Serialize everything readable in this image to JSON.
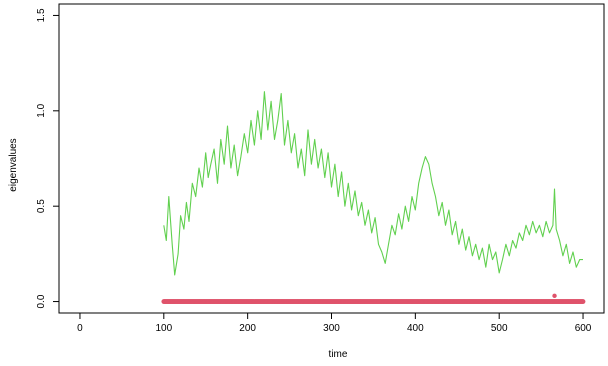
{
  "chart_data": {
    "type": "line",
    "xlabel": "time",
    "ylabel": "eigenvalues",
    "xlim": [
      -25,
      625
    ],
    "ylim": [
      -0.06,
      1.56
    ],
    "x_ticks": [
      0,
      100,
      200,
      300,
      400,
      500,
      600
    ],
    "y_ticks": [
      0.0,
      0.5,
      1.0,
      1.5
    ],
    "x_tick_labels": [
      "0",
      "100",
      "200",
      "300",
      "400",
      "500",
      "600"
    ],
    "y_tick_labels": [
      "0.0",
      "0.5",
      "1.0",
      "1.5"
    ],
    "grid": false,
    "legend": "none",
    "series": [
      {
        "color": "#61d04f",
        "style": "line",
        "x": [
          100,
          103,
          106,
          110,
          113,
          117,
          120,
          124,
          127,
          130,
          134,
          138,
          142,
          146,
          150,
          153,
          156,
          160,
          164,
          168,
          172,
          176,
          180,
          184,
          188,
          192,
          196,
          200,
          204,
          208,
          212,
          216,
          220,
          224,
          228,
          232,
          236,
          240,
          244,
          248,
          252,
          256,
          260,
          264,
          268,
          272,
          276,
          280,
          284,
          288,
          292,
          296,
          300,
          304,
          308,
          312,
          316,
          320,
          324,
          328,
          332,
          336,
          340,
          344,
          348,
          352,
          356,
          360,
          364,
          368,
          372,
          376,
          380,
          384,
          388,
          392,
          396,
          400,
          404,
          408,
          412,
          416,
          420,
          424,
          428,
          432,
          436,
          440,
          444,
          448,
          452,
          456,
          460,
          464,
          468,
          472,
          476,
          480,
          484,
          488,
          492,
          496,
          500,
          504,
          508,
          512,
          516,
          520,
          524,
          528,
          532,
          536,
          540,
          544,
          548,
          552,
          556,
          560,
          564,
          566,
          568,
          572,
          576,
          580,
          584,
          588,
          592,
          596,
          600
        ],
        "y": [
          0.4,
          0.32,
          0.55,
          0.3,
          0.14,
          0.25,
          0.45,
          0.38,
          0.52,
          0.42,
          0.62,
          0.55,
          0.7,
          0.6,
          0.78,
          0.65,
          0.72,
          0.8,
          0.62,
          0.85,
          0.72,
          0.92,
          0.7,
          0.82,
          0.66,
          0.76,
          0.88,
          0.78,
          0.95,
          0.82,
          1.0,
          0.85,
          1.1,
          0.9,
          1.05,
          0.85,
          0.95,
          1.09,
          0.82,
          0.95,
          0.78,
          0.88,
          0.7,
          0.8,
          0.66,
          0.9,
          0.72,
          0.85,
          0.7,
          0.8,
          0.65,
          0.78,
          0.6,
          0.72,
          0.55,
          0.68,
          0.5,
          0.62,
          0.48,
          0.58,
          0.45,
          0.52,
          0.4,
          0.48,
          0.36,
          0.44,
          0.3,
          0.26,
          0.2,
          0.3,
          0.4,
          0.35,
          0.46,
          0.38,
          0.5,
          0.42,
          0.55,
          0.48,
          0.62,
          0.7,
          0.76,
          0.72,
          0.62,
          0.55,
          0.45,
          0.52,
          0.4,
          0.48,
          0.35,
          0.42,
          0.3,
          0.38,
          0.27,
          0.34,
          0.24,
          0.3,
          0.22,
          0.28,
          0.18,
          0.3,
          0.22,
          0.26,
          0.15,
          0.22,
          0.3,
          0.24,
          0.32,
          0.28,
          0.36,
          0.32,
          0.4,
          0.35,
          0.42,
          0.36,
          0.4,
          0.34,
          0.42,
          0.36,
          0.4,
          0.59,
          0.38,
          0.32,
          0.24,
          0.3,
          0.2,
          0.26,
          0.18,
          0.22,
          0.22
        ]
      },
      {
        "color": "#df536b",
        "style": "points",
        "x_start": 100,
        "x_end": 600,
        "y": 0.0,
        "outliers": [
          {
            "x": 566,
            "y": 0.03
          }
        ]
      }
    ]
  }
}
